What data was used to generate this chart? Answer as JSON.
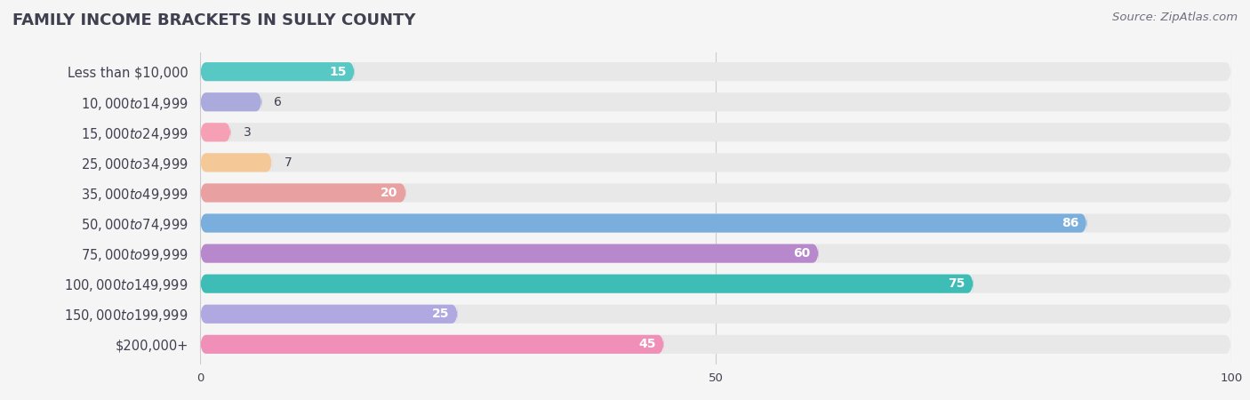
{
  "title": "FAMILY INCOME BRACKETS IN SULLY COUNTY",
  "source": "Source: ZipAtlas.com",
  "categories": [
    "Less than $10,000",
    "$10,000 to $14,999",
    "$15,000 to $24,999",
    "$25,000 to $34,999",
    "$35,000 to $49,999",
    "$50,000 to $74,999",
    "$75,000 to $99,999",
    "$100,000 to $149,999",
    "$150,000 to $199,999",
    "$200,000+"
  ],
  "values": [
    15,
    6,
    3,
    7,
    20,
    86,
    60,
    75,
    25,
    45
  ],
  "colors": [
    "#58c8c5",
    "#aaaadc",
    "#f5a0b5",
    "#f5c898",
    "#e8a0a0",
    "#7aaedd",
    "#b888cc",
    "#3dbdb5",
    "#b0a8e0",
    "#f090b8"
  ],
  "xlim": [
    0,
    100
  ],
  "background_color": "#f5f5f5",
  "bar_bg_color": "#e8e8e8",
  "title_color": "#404050",
  "label_color": "#404050",
  "value_color_inside": "#ffffff",
  "value_color_outside": "#404050",
  "title_fontsize": 13,
  "label_fontsize": 10.5,
  "value_fontsize": 10,
  "source_fontsize": 9.5,
  "source_color": "#707080",
  "bar_height": 0.62,
  "value_threshold": 12
}
